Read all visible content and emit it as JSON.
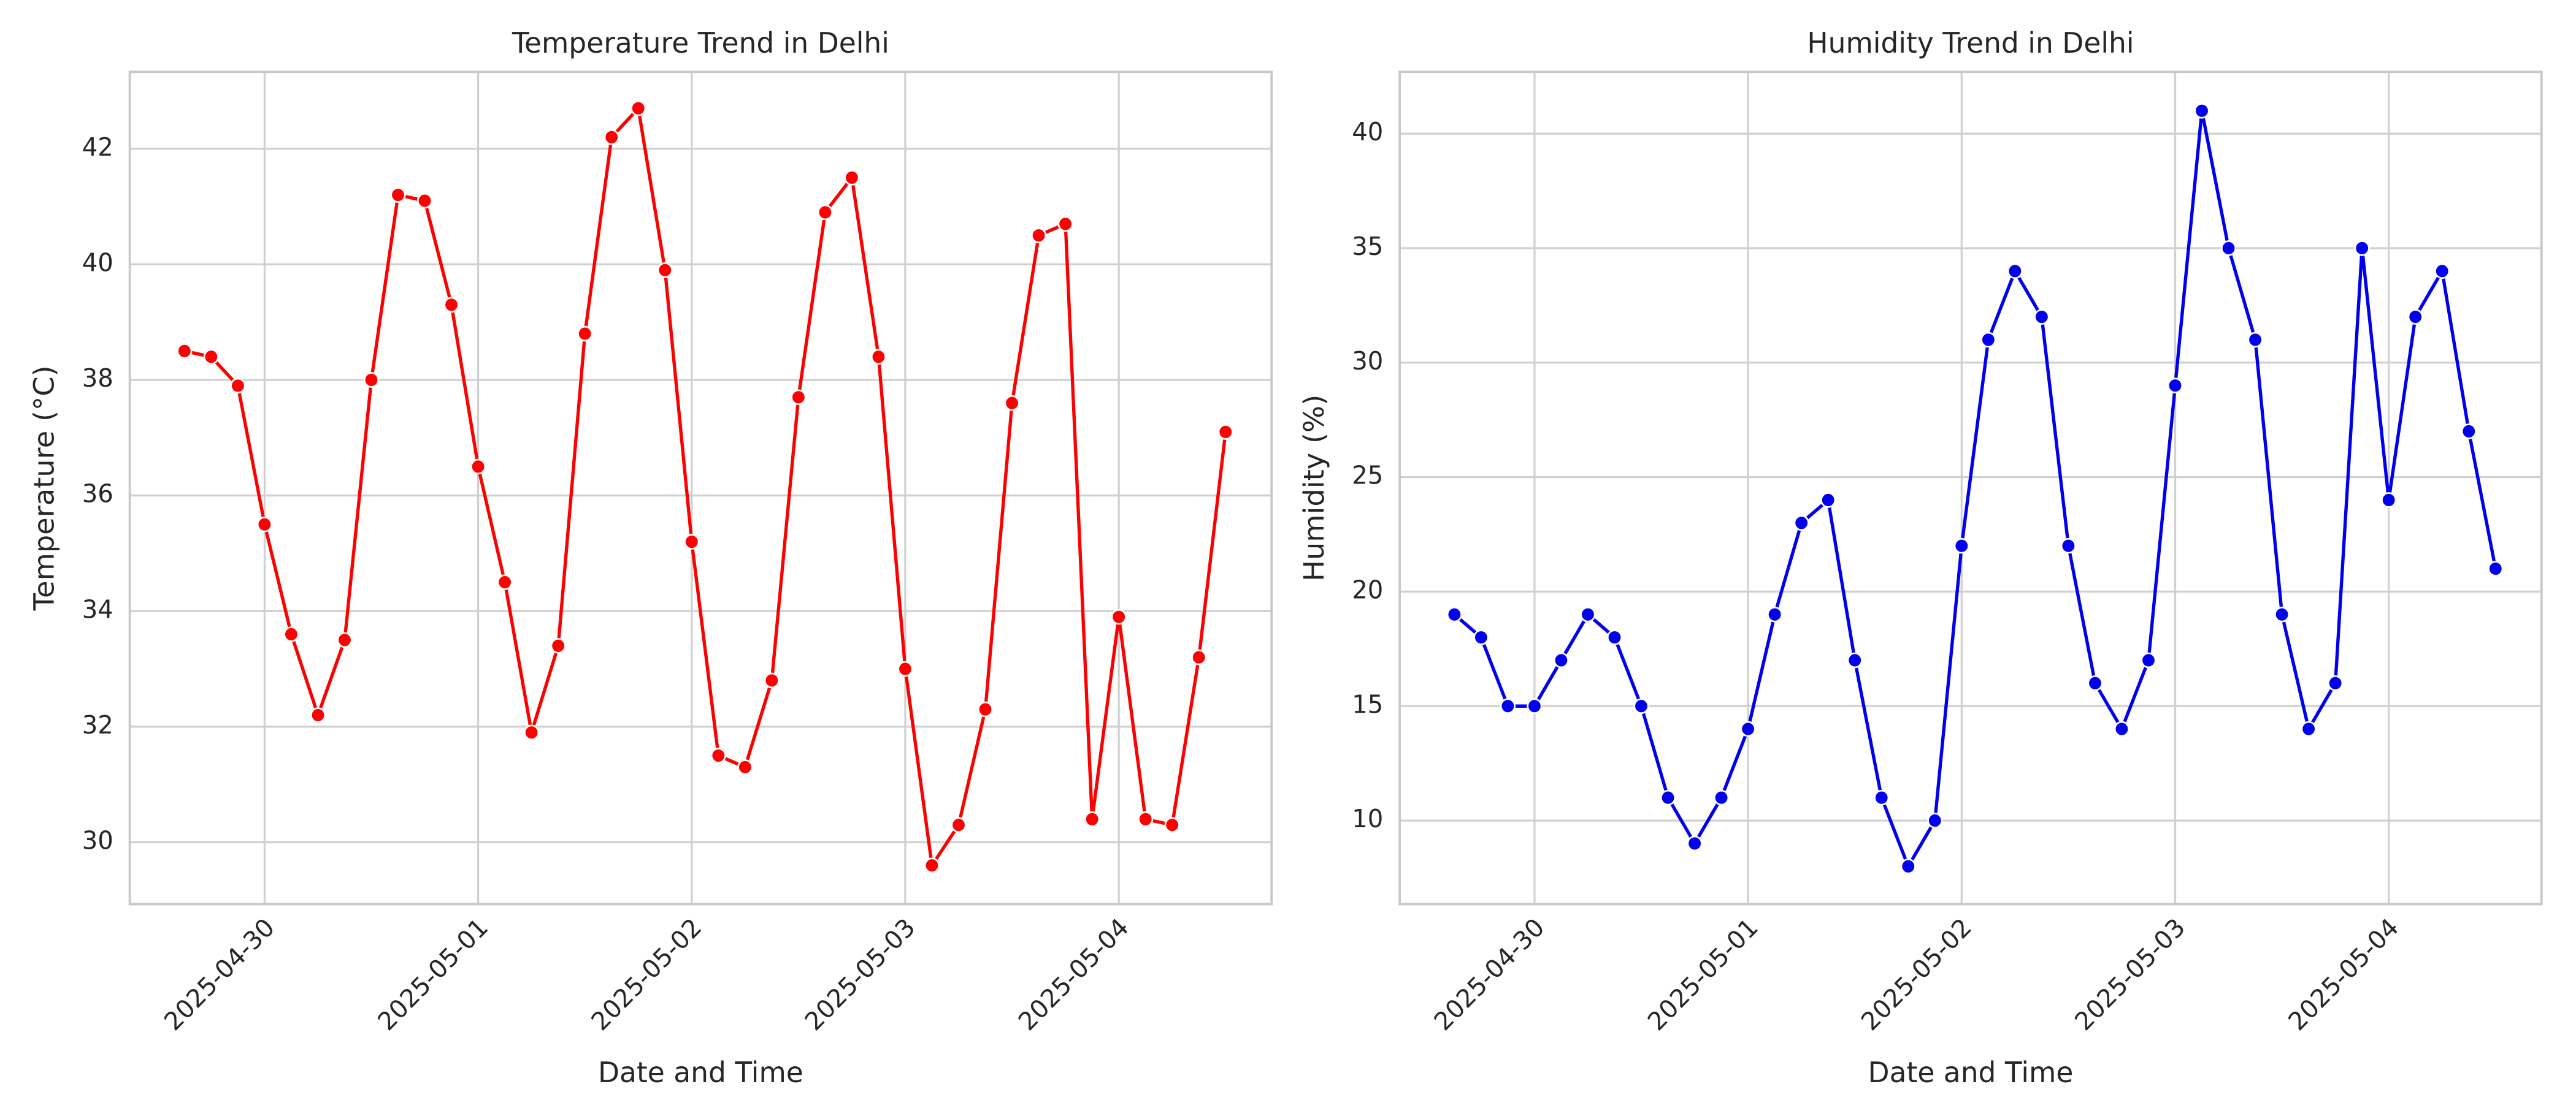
{
  "chart_data": [
    {
      "type": "line",
      "title": "Temperature Trend in Delhi",
      "xlabel": "Date and Time",
      "ylabel": "Temperature (°C)",
      "color": "#ff0000",
      "x": [
        "2025-04-29 15:00",
        "2025-04-29 18:00",
        "2025-04-29 21:00",
        "2025-04-30 00:00",
        "2025-04-30 03:00",
        "2025-04-30 06:00",
        "2025-04-30 09:00",
        "2025-04-30 12:00",
        "2025-04-30 15:00",
        "2025-04-30 18:00",
        "2025-04-30 21:00",
        "2025-05-01 00:00",
        "2025-05-01 03:00",
        "2025-05-01 06:00",
        "2025-05-01 09:00",
        "2025-05-01 12:00",
        "2025-05-01 15:00",
        "2025-05-01 18:00",
        "2025-05-01 21:00",
        "2025-05-02 00:00",
        "2025-05-02 03:00",
        "2025-05-02 06:00",
        "2025-05-02 09:00",
        "2025-05-02 12:00",
        "2025-05-02 15:00",
        "2025-05-02 18:00",
        "2025-05-02 21:00",
        "2025-05-03 00:00",
        "2025-05-03 03:00",
        "2025-05-03 06:00",
        "2025-05-03 09:00",
        "2025-05-03 12:00",
        "2025-05-03 15:00",
        "2025-05-03 18:00",
        "2025-05-03 21:00",
        "2025-05-04 00:00",
        "2025-05-04 03:00",
        "2025-05-04 06:00",
        "2025-05-04 09:00",
        "2025-05-04 12:00"
      ],
      "values": [
        38.5,
        38.4,
        37.9,
        35.5,
        33.6,
        32.2,
        33.5,
        38.0,
        41.2,
        41.1,
        39.3,
        36.5,
        34.5,
        31.9,
        33.4,
        38.8,
        42.2,
        42.7,
        39.9,
        35.2,
        31.5,
        31.3,
        32.8,
        37.7,
        40.9,
        41.5,
        38.4,
        33.0,
        29.6,
        30.3,
        32.3,
        37.6,
        40.5,
        40.7,
        30.4,
        33.9,
        30.4,
        30.3,
        33.2,
        37.1
      ],
      "xlim": [
        "2025-04-29 08:51",
        "2025-05-04 17:10"
      ],
      "xticks": [
        "2025-04-30",
        "2025-05-01",
        "2025-05-02",
        "2025-05-03",
        "2025-05-04"
      ],
      "ylim": [
        28.93,
        43.33
      ],
      "yticks": [
        30,
        32,
        34,
        36,
        38,
        40,
        42
      ],
      "grid": true
    },
    {
      "type": "line",
      "title": "Humidity Trend in Delhi",
      "xlabel": "Date and Time",
      "ylabel": "Humidity (%)",
      "color": "#0000ee",
      "x": [
        "2025-04-29 15:00",
        "2025-04-29 18:00",
        "2025-04-29 21:00",
        "2025-04-30 00:00",
        "2025-04-30 03:00",
        "2025-04-30 06:00",
        "2025-04-30 09:00",
        "2025-04-30 12:00",
        "2025-04-30 15:00",
        "2025-04-30 18:00",
        "2025-04-30 21:00",
        "2025-05-01 00:00",
        "2025-05-01 03:00",
        "2025-05-01 06:00",
        "2025-05-01 09:00",
        "2025-05-01 12:00",
        "2025-05-01 15:00",
        "2025-05-01 18:00",
        "2025-05-01 21:00",
        "2025-05-02 00:00",
        "2025-05-02 03:00",
        "2025-05-02 06:00",
        "2025-05-02 09:00",
        "2025-05-02 12:00",
        "2025-05-02 15:00",
        "2025-05-02 18:00",
        "2025-05-02 21:00",
        "2025-05-03 00:00",
        "2025-05-03 03:00",
        "2025-05-03 06:00",
        "2025-05-03 09:00",
        "2025-05-03 12:00",
        "2025-05-03 15:00",
        "2025-05-03 18:00",
        "2025-05-03 21:00",
        "2025-05-04 00:00",
        "2025-05-04 03:00",
        "2025-05-04 06:00",
        "2025-05-04 09:00",
        "2025-05-04 12:00"
      ],
      "values": [
        19,
        18,
        15,
        15,
        17,
        19,
        18,
        15,
        11,
        9,
        11,
        14,
        19,
        23,
        24,
        17,
        11,
        8,
        10,
        22,
        31,
        34,
        32,
        22,
        16,
        14,
        17,
        29,
        41,
        35,
        31,
        19,
        14,
        16,
        35,
        24,
        32,
        34,
        27,
        21
      ],
      "xlim": [
        "2025-04-29 08:51",
        "2025-05-04 17:10"
      ],
      "xticks": [
        "2025-04-30",
        "2025-05-01",
        "2025-05-02",
        "2025-05-03",
        "2025-05-04"
      ],
      "ylim": [
        6.35,
        42.7
      ],
      "yticks": [
        10,
        15,
        20,
        25,
        30,
        35,
        40
      ],
      "grid": true
    }
  ]
}
